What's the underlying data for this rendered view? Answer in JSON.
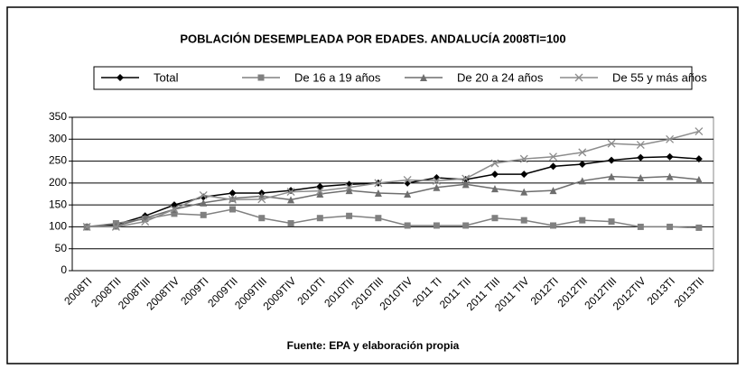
{
  "chart_data": {
    "type": "line",
    "title": "POBLACIÓN DESEMPLEADA POR EDADES. ANDALUCÍA 2008TI=100",
    "source": "Fuente: EPA y elaboración propia",
    "categories": [
      "2008TI",
      "2008TII",
      "2008TIII",
      "2008TIV",
      "2009TI",
      "2009TII",
      "2009TIII",
      "2009TIV",
      "2010TI",
      "2010TII",
      "2010TIII",
      "2010TIV",
      "2011 TI",
      "2011 TII",
      "2011 TIII",
      "2011 TIV",
      "2012TI",
      "2012TII",
      "2012TIII",
      "2012TIV",
      "2013TI",
      "2013TII"
    ],
    "series": [
      {
        "name": "Total",
        "color": "#000000",
        "marker": "diamond",
        "values": [
          100,
          105,
          125,
          150,
          168,
          177,
          177,
          183,
          192,
          197,
          200,
          200,
          212,
          208,
          220,
          220,
          238,
          243,
          252,
          258,
          260,
          255
        ]
      },
      {
        "name": "De 16 a 19 años",
        "color": "#808080",
        "marker": "square",
        "values": [
          100,
          108,
          118,
          130,
          127,
          140,
          120,
          108,
          120,
          125,
          120,
          103,
          103,
          103,
          120,
          115,
          103,
          115,
          112,
          100,
          100,
          98
        ]
      },
      {
        "name": "De 20 a 24 años",
        "color": "#6e6e6e",
        "marker": "triangle",
        "values": [
          100,
          102,
          120,
          140,
          155,
          165,
          170,
          162,
          175,
          183,
          177,
          175,
          190,
          197,
          187,
          180,
          183,
          205,
          215,
          212,
          215,
          208
        ]
      },
      {
        "name": "De 55 y más años",
        "color": "#8c8c8c",
        "marker": "x",
        "values": [
          100,
          100,
          112,
          140,
          172,
          162,
          163,
          180,
          182,
          190,
          200,
          207,
          205,
          210,
          245,
          255,
          260,
          270,
          290,
          287,
          300,
          318
        ]
      }
    ],
    "ylim": [
      0,
      350
    ],
    "yticks": [
      0,
      50,
      100,
      150,
      200,
      250,
      300,
      350
    ],
    "grid": true
  }
}
